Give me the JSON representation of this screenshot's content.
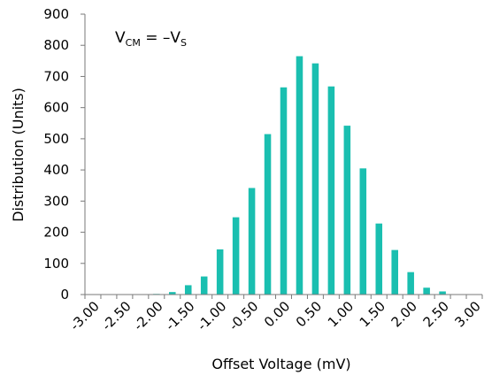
{
  "chart_data": {
    "type": "bar",
    "annotation": {
      "main": "V",
      "sub1": "CM",
      "mid": " = –V",
      "sub2": "S"
    },
    "xlabel": "Offset Voltage (mV)",
    "ylabel": "Distribution (Units)",
    "ylim": [
      0,
      900
    ],
    "yticks": [
      "0",
      "100",
      "200",
      "300",
      "400",
      "500",
      "600",
      "700",
      "800",
      "900"
    ],
    "xtick_labels": [
      "-3.00",
      "-2.50",
      "-2.00",
      "-1.50",
      "-1.00",
      "-0.50",
      "0.00",
      "0.50",
      "1.00",
      "1.50",
      "2.00",
      "2.50",
      "3.00"
    ],
    "categories": [
      "-3.00",
      "-2.75",
      "-2.50",
      "-2.25",
      "-2.00",
      "-1.75",
      "-1.50",
      "-1.25",
      "-1.00",
      "-0.75",
      "-0.50",
      "-0.25",
      "0.00",
      "0.25",
      "0.50",
      "0.75",
      "1.00",
      "1.25",
      "1.50",
      "1.75",
      "2.00",
      "2.25",
      "2.50",
      "2.75",
      "3.00"
    ],
    "values": [
      0,
      0,
      0,
      0,
      2,
      8,
      30,
      58,
      145,
      248,
      342,
      515,
      665,
      765,
      742,
      668,
      542,
      405,
      228,
      143,
      72,
      22,
      10,
      0,
      0
    ],
    "bar_color": "#1ABFB0",
    "grid": false
  }
}
